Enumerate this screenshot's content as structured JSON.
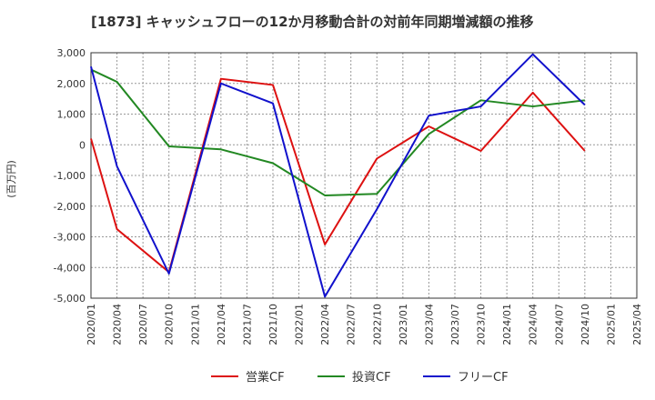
{
  "chart_data": {
    "type": "line",
    "title": "[1873]  キャッシュフローの12か月移動合計の対前年同期増減額の推移",
    "ylabel": "(百万円)",
    "xlabel": "",
    "ylim": [
      -5000,
      3000
    ],
    "yticks": [
      3000,
      2000,
      1000,
      0,
      -1000,
      -2000,
      -3000,
      -4000,
      -5000
    ],
    "ytick_labels": [
      "3,000",
      "2,000",
      "1,000",
      "0",
      "-1,000",
      "-2,000",
      "-3,000",
      "-4,000",
      "-5,000"
    ],
    "categories": [
      "2020/01",
      "2020/04",
      "2020/07",
      "2020/10",
      "2021/01",
      "2021/04",
      "2021/07",
      "2021/10",
      "2022/01",
      "2022/04",
      "2022/07",
      "2022/10",
      "2023/01",
      "2023/04",
      "2023/07",
      "2023/10",
      "2024/01",
      "2024/04",
      "2024/07",
      "2024/10",
      "2025/01",
      "2025/04"
    ],
    "grid": true,
    "legend_position": "bottom",
    "series": [
      {
        "name": "営業CF",
        "color": "#dd1111",
        "values": [
          200,
          -2750,
          null,
          -4150,
          null,
          2150,
          null,
          1950,
          null,
          -3250,
          null,
          -450,
          null,
          600,
          null,
          -200,
          null,
          1700,
          null,
          -200,
          null,
          null
        ]
      },
      {
        "name": "投資CF",
        "color": "#228822",
        "values": [
          2450,
          2050,
          null,
          -50,
          null,
          -150,
          null,
          -600,
          null,
          -1650,
          null,
          -1600,
          null,
          350,
          null,
          1450,
          null,
          1250,
          null,
          1450,
          null,
          null
        ]
      },
      {
        "name": "フリーCF",
        "color": "#1111cc",
        "values": [
          2550,
          -700,
          null,
          -4200,
          null,
          2000,
          null,
          1350,
          null,
          -4950,
          null,
          -2100,
          null,
          950,
          null,
          1250,
          null,
          2950,
          null,
          1300,
          null,
          null
        ]
      }
    ]
  }
}
